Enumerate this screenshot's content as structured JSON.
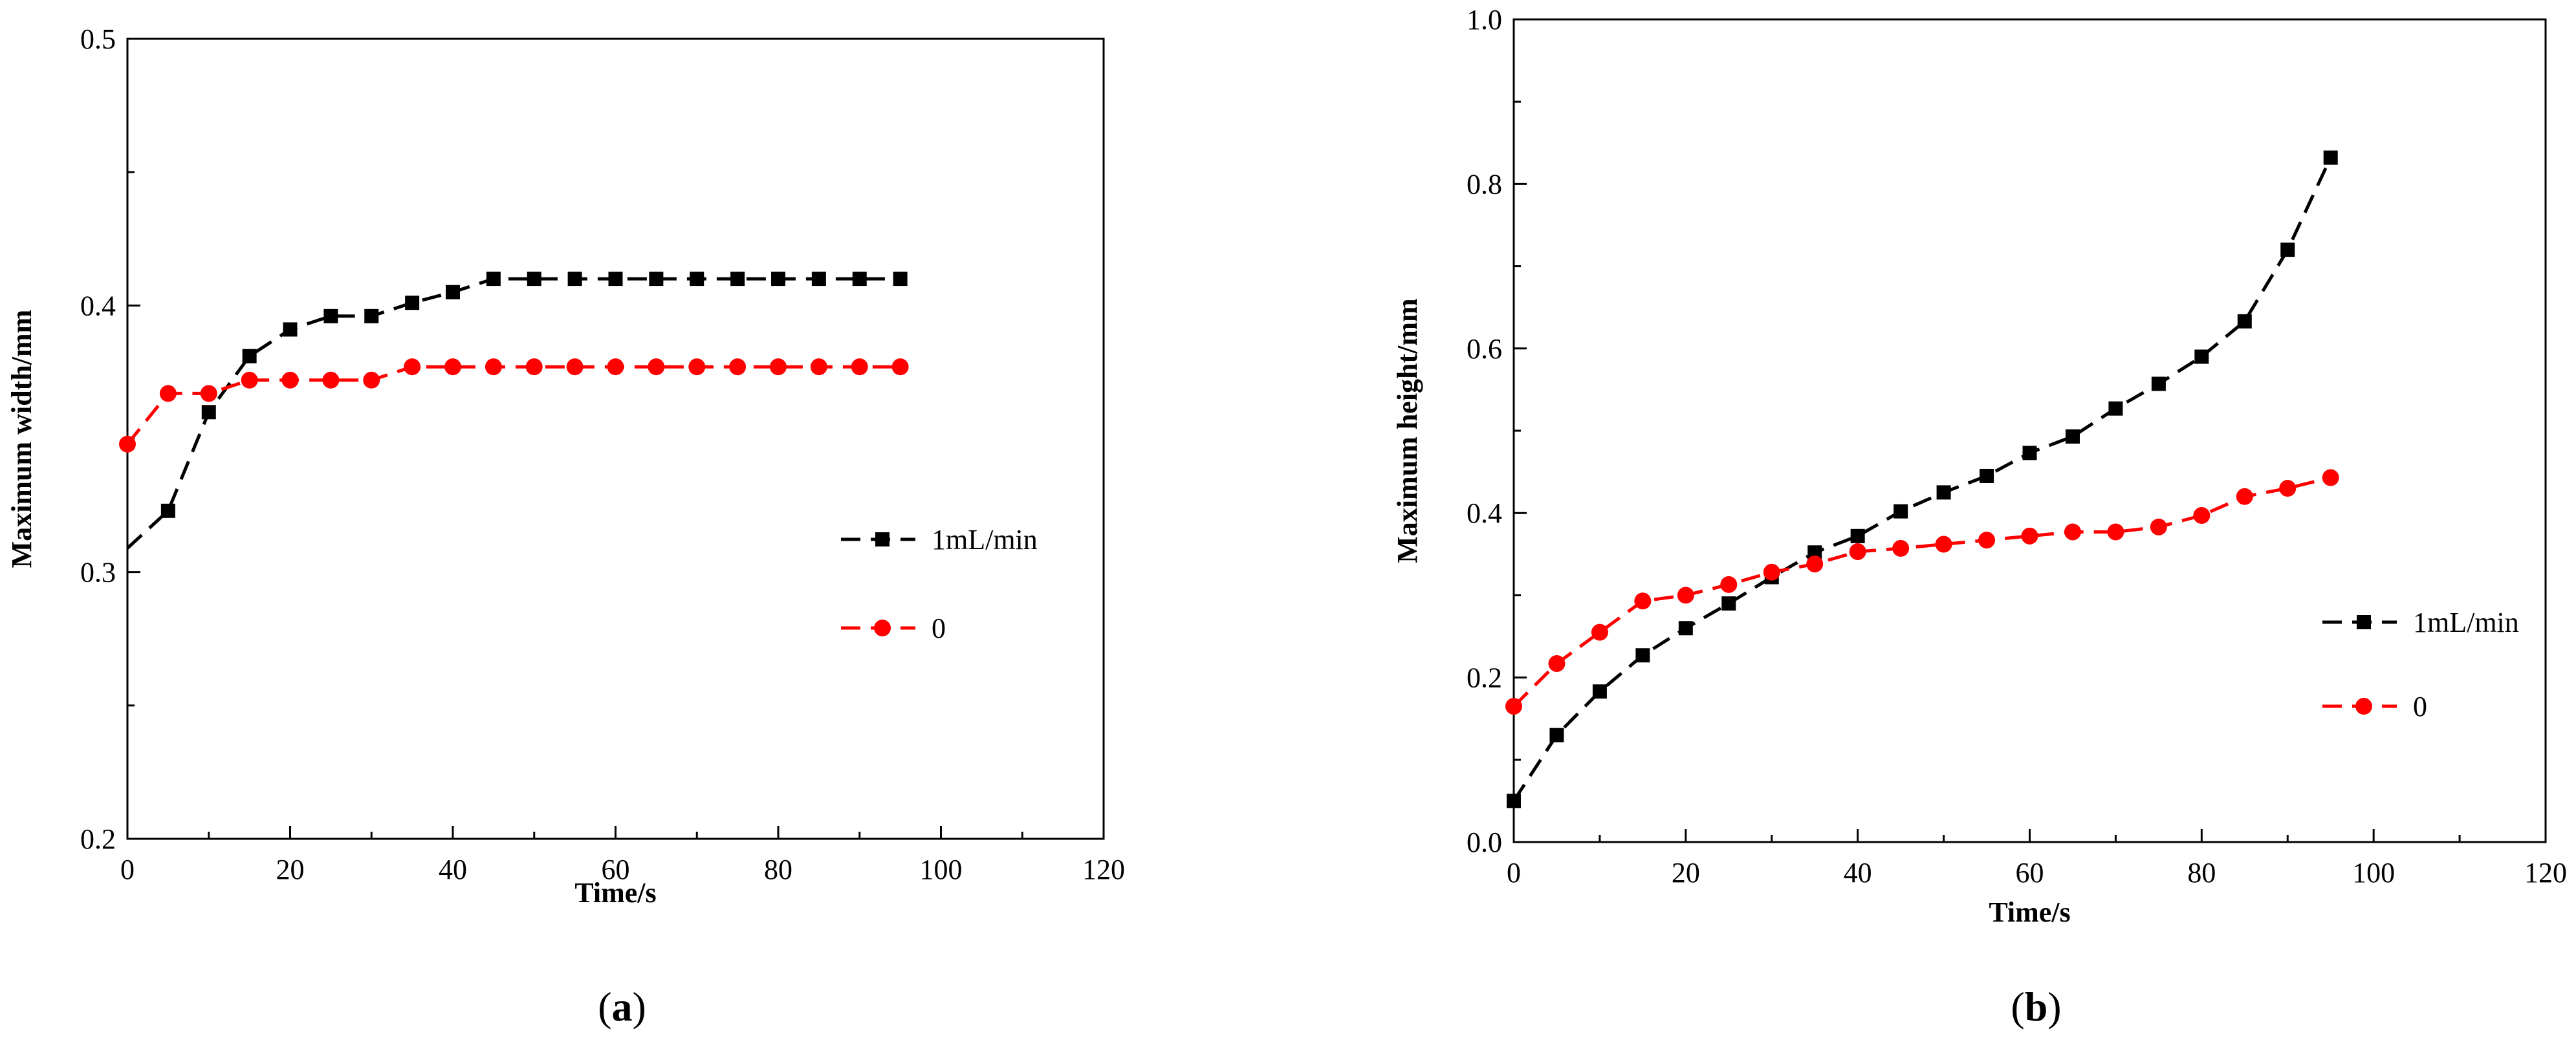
{
  "chart_data": [
    {
      "type": "line",
      "panel": "a",
      "caption": {
        "open": "(",
        "letter": "a",
        "close": ")"
      },
      "title": "",
      "xlabel": "Time/s",
      "ylabel": "Maximum width/mm",
      "xlim": [
        0,
        120
      ],
      "ylim": [
        0.2,
        0.5
      ],
      "xticks": [
        0,
        20,
        40,
        60,
        80,
        100,
        120
      ],
      "yticks": [
        0.2,
        0.3,
        0.4,
        0.5
      ],
      "xtick_labels": [
        "0",
        "20",
        "40",
        "60",
        "80",
        "100",
        "120"
      ],
      "ytick_labels": [
        "0.2",
        "0.3",
        "0.4",
        "0.5"
      ],
      "grid": false,
      "legend_position": "right",
      "x": [
        0,
        5,
        10,
        15,
        20,
        25,
        30,
        35,
        40,
        45,
        50,
        55,
        60,
        65,
        70,
        75,
        80,
        85,
        90,
        95
      ],
      "series": [
        {
          "name": "1mL/min",
          "color": "#000000",
          "marker": "square",
          "start_unmarked": true,
          "values": [
            0.309,
            0.323,
            0.36,
            0.381,
            0.391,
            0.396,
            0.396,
            0.401,
            0.405,
            0.41,
            0.41,
            0.41,
            0.41,
            0.41,
            0.41,
            0.41,
            0.41,
            0.41,
            0.41,
            0.41
          ]
        },
        {
          "name": "0",
          "color": "#ff0000",
          "marker": "circle",
          "start_unmarked": false,
          "values": [
            0.348,
            0.367,
            0.367,
            0.372,
            0.372,
            0.372,
            0.372,
            0.377,
            0.377,
            0.377,
            0.377,
            0.377,
            0.377,
            0.377,
            0.377,
            0.377,
            0.377,
            0.377,
            0.377,
            0.377
          ]
        }
      ]
    },
    {
      "type": "line",
      "panel": "b",
      "caption": {
        "open": "(",
        "letter": "b",
        "close": ")"
      },
      "title": "",
      "xlabel": "Time/s",
      "ylabel": "Maximum height/mm",
      "xlim": [
        0,
        120
      ],
      "ylim": [
        0.0,
        1.0
      ],
      "xticks": [
        0,
        20,
        40,
        60,
        80,
        100,
        120
      ],
      "yticks": [
        0.0,
        0.2,
        0.4,
        0.6,
        0.8,
        1.0
      ],
      "xtick_labels": [
        "0",
        "20",
        "40",
        "60",
        "80",
        "100",
        "120"
      ],
      "ytick_labels": [
        "0.0",
        "0.2",
        "0.4",
        "0.6",
        "0.8",
        "1.0"
      ],
      "grid": false,
      "legend_position": "right",
      "x": [
        0,
        5,
        10,
        15,
        20,
        25,
        30,
        35,
        40,
        45,
        50,
        55,
        60,
        65,
        70,
        75,
        80,
        85,
        90,
        95
      ],
      "series": [
        {
          "name": "1mL/min",
          "color": "#000000",
          "marker": "square",
          "start_unmarked": false,
          "values": [
            0.05,
            0.13,
            0.183,
            0.227,
            0.26,
            0.29,
            0.322,
            0.352,
            0.372,
            0.402,
            0.425,
            0.445,
            0.473,
            0.493,
            0.527,
            0.557,
            0.59,
            0.633,
            0.72,
            0.832
          ]
        },
        {
          "name": "0",
          "color": "#ff0000",
          "marker": "circle",
          "start_unmarked": false,
          "values": [
            0.165,
            0.217,
            0.255,
            0.293,
            0.3,
            0.313,
            0.328,
            0.338,
            0.353,
            0.357,
            0.362,
            0.367,
            0.372,
            0.377,
            0.377,
            0.383,
            0.397,
            0.42,
            0.43,
            0.443
          ]
        }
      ]
    }
  ]
}
